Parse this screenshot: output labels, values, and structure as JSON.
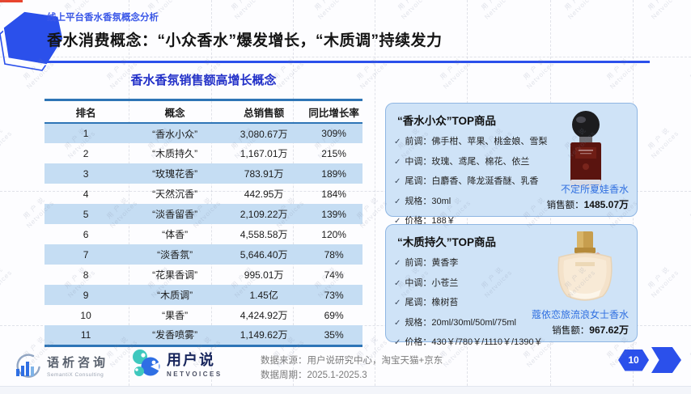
{
  "header": {
    "eyebrow": "线上平台香水香氛概念分析",
    "title": "香水消费概念：“小众香水”爆发增长，“木质调”持续发力"
  },
  "table": {
    "title": "香水香氛销售额高增长概念",
    "columns": [
      "排名",
      "概念",
      "总销售额",
      "同比增长率"
    ],
    "rows": [
      [
        "1",
        "“香水小众”",
        "3,080.67万",
        "309%"
      ],
      [
        "2",
        "“木质持久”",
        "1,167.01万",
        "215%"
      ],
      [
        "3",
        "“玫瑰花香”",
        "783.91万",
        "189%"
      ],
      [
        "4",
        "“天然沉香”",
        "442.95万",
        "184%"
      ],
      [
        "5",
        "“淡香留香”",
        "2,109.22万",
        "139%"
      ],
      [
        "6",
        "“体香”",
        "4,558.58万",
        "120%"
      ],
      [
        "7",
        "“淡香氛”",
        "5,646.40万",
        "78%"
      ],
      [
        "8",
        "“花果香调”",
        "995.01万",
        "74%"
      ],
      [
        "9",
        "“木质调”",
        "1.45亿",
        "73%"
      ],
      [
        "10",
        "“果香”",
        "4,424.92万",
        "69%"
      ],
      [
        "11",
        "“发香喷雾”",
        "1,149.62万",
        "35%"
      ]
    ]
  },
  "panels": [
    {
      "title": "“香水小众”TOP商品",
      "bullets": [
        "前调：佛手柑、苹果、桃金娘、雪梨",
        "中调：玫瑰、鸢尾、棉花、依兰",
        "尾调：白麝香、降龙涎香醚、乳香",
        "规格：30ml",
        "价格：188￥"
      ],
      "product_name": "不定所夏娃香水",
      "sales_label": "销售额：",
      "sales_value": "1485.07万"
    },
    {
      "title": "“木质持久”TOP商品",
      "bullets": [
        "前调：黄香李",
        "中调：小苍兰",
        "尾调：橡树苔",
        "规格：20ml/30ml/50ml/75ml",
        "价格：430￥/780￥/1110￥/1390￥"
      ],
      "product_name": "蔻依恋旅流浪女士香水",
      "sales_label": "销售额：",
      "sales_value": "967.62万"
    }
  ],
  "footer": {
    "logo1_name": "语析咨询",
    "logo1_sub": "SemantiX Consulting",
    "logo2_name": "用户说",
    "logo2_sub": "NETVOICES",
    "source_line1": "数据来源：用户说研究中心，淘宝天猫+京东",
    "source_line2": "数据周期：2025.1-2025.3",
    "page_number": "10"
  },
  "icons": {
    "check": "✓"
  },
  "watermark": {
    "line1": "用 户 说",
    "line2": "Netvoices"
  },
  "colors": {
    "accent_blue": "#2B50EB",
    "deep_blue": "#2230C8",
    "table_border_blue": "#2E75B6",
    "row_highlight": "#C5DDF3",
    "panel_bg": "#CFE3F7",
    "panel_border": "#8FB6E3",
    "product_link_blue": "#2F6FE0",
    "red_accent": "#E8442E"
  }
}
